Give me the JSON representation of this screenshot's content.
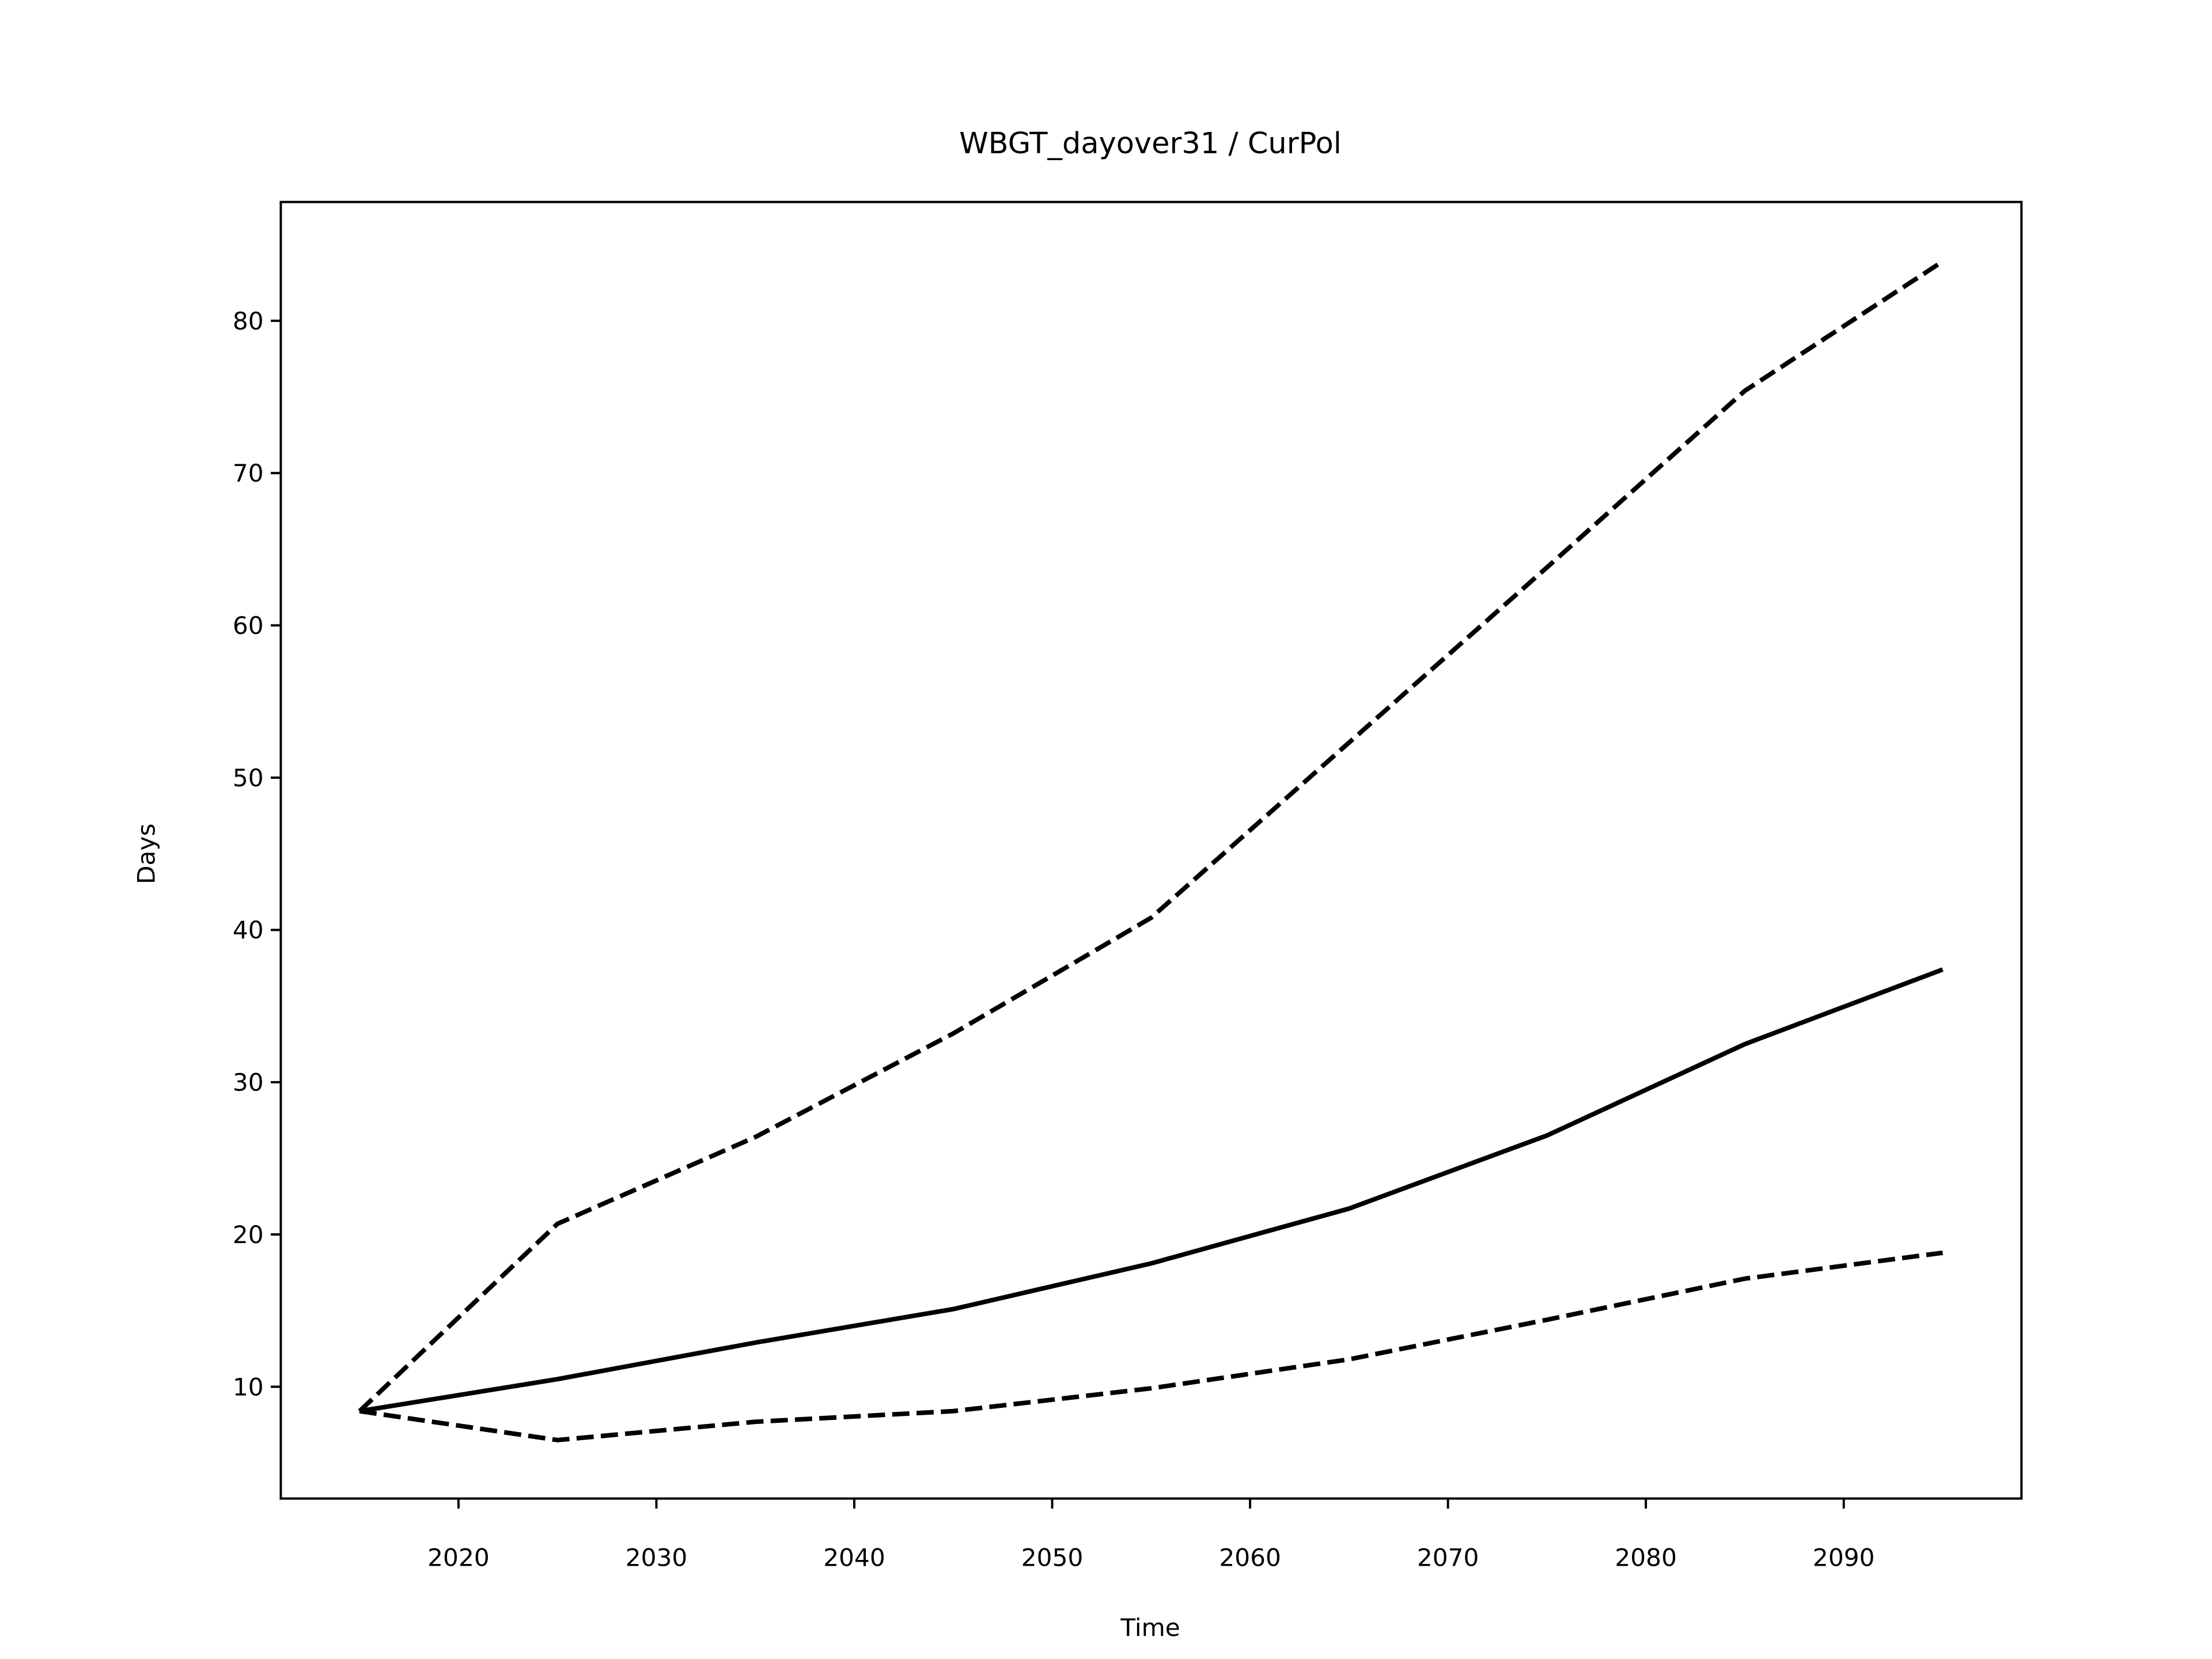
{
  "chart_data": {
    "type": "line",
    "title": "WBGT_dayover31 / CurPol",
    "x_label": "Time",
    "y_label": "Days",
    "x": [
      2015,
      2025,
      2035,
      2045,
      2055,
      2065,
      2075,
      2085,
      2095
    ],
    "series": [
      {
        "color": "#000000",
        "linestyle": "solid",
        "values": [
          8.4,
          10.5,
          12.9,
          15.1,
          18.1,
          21.7,
          26.5,
          32.5,
          37.4
        ]
      },
      {
        "color": "#000000",
        "linestyle": "dashed",
        "values": [
          8.4,
          20.7,
          26.4,
          33.2,
          40.8,
          52.3,
          63.8,
          75.4,
          83.9
        ]
      },
      {
        "color": "#000000",
        "linestyle": "dashed",
        "values": [
          8.4,
          6.5,
          7.7,
          8.4,
          9.9,
          11.8,
          14.4,
          17.1,
          18.8
        ]
      }
    ],
    "xlim": [
      2011.02,
      2098.98
    ],
    "xticks": [
      2020,
      2030,
      2040,
      2050,
      2060,
      2070,
      2080,
      2090
    ],
    "ylim": [
      2.66,
      87.8
    ],
    "yticks": [
      10,
      20,
      30,
      40,
      50,
      60,
      70,
      80
    ],
    "grid": false
  }
}
